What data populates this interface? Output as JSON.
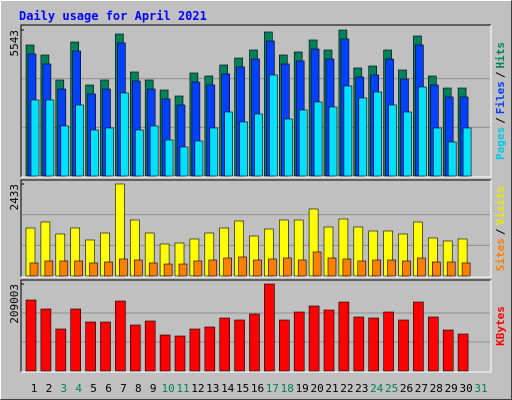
{
  "title": "Daily usage for April 2021",
  "legend_separator": "/",
  "categories": [
    "1",
    "2",
    "3",
    "4",
    "5",
    "6",
    "7",
    "8",
    "9",
    "10",
    "11",
    "12",
    "13",
    "14",
    "15",
    "16",
    "17",
    "18",
    "19",
    "20",
    "21",
    "22",
    "23",
    "24",
    "25",
    "26",
    "27",
    "28",
    "29",
    "30",
    "31"
  ],
  "category_colors": [
    "#000000",
    "#000000",
    "#00805c",
    "#00805c",
    "#000000",
    "#000000",
    "#000000",
    "#000000",
    "#000000",
    "#00805c",
    "#00805c",
    "#000000",
    "#000000",
    "#000000",
    "#000000",
    "#000000",
    "#00805c",
    "#00805c",
    "#000000",
    "#000000",
    "#000000",
    "#000000",
    "#000000",
    "#00805c",
    "#00805c",
    "#000000",
    "#000000",
    "#000000",
    "#000000",
    "#000000",
    "#00805c"
  ],
  "chart_data": [
    {
      "type": "bar",
      "ylim": [
        0,
        5543
      ],
      "yticks": [
        5543
      ],
      "grid": true,
      "series": [
        {
          "name": "Hits",
          "color": "#00805c",
          "label_color": "#00805c",
          "values": [
            4974,
            4594,
            3645,
            5088,
            3455,
            3645,
            5392,
            3949,
            3645,
            3265,
            3038,
            3911,
            3797,
            4215,
            4480,
            4784,
            5468,
            4594,
            4708,
            5164,
            4784,
            5543,
            4101,
            4177,
            4784,
            4025,
            5316,
            3797,
            3341,
            3341,
            null
          ]
        },
        {
          "name": "Files",
          "color": "#0040ff",
          "label_color": "#0040ff",
          "values": [
            4632,
            4253,
            3303,
            4746,
            3114,
            3303,
            5050,
            3607,
            3303,
            2924,
            2696,
            3569,
            3455,
            3873,
            4139,
            4442,
            5126,
            4253,
            4367,
            4822,
            4442,
            5202,
            3759,
            3835,
            4442,
            3683,
            4974,
            3455,
            3000,
            3000,
            null
          ]
        },
        {
          "name": "Pages",
          "color": "#00e0ff",
          "label_color": "#00c8e8",
          "values": [
            2886,
            2886,
            1899,
            2696,
            1747,
            1823,
            3152,
            1747,
            1899,
            1367,
            1101,
            1329,
            1823,
            2430,
            2050,
            2354,
            3835,
            2164,
            2506,
            2810,
            2620,
            3417,
            2962,
            3189,
            2696,
            2430,
            3379,
            1823,
            1291,
            1823,
            null
          ]
        }
      ]
    },
    {
      "type": "bar",
      "ylim": [
        0,
        2433
      ],
      "yticks": [
        2433
      ],
      "grid": true,
      "series": [
        {
          "name": "Visits",
          "color": "#ffff00",
          "label_color": "#e8e800",
          "values": [
            1270,
            1428,
            1111,
            1270,
            952,
            1137,
            2433,
            1481,
            1137,
            846,
            873,
            979,
            1137,
            1270,
            1455,
            1058,
            1243,
            1481,
            1481,
            1772,
            1296,
            1508,
            1296,
            1190,
            1190,
            1111,
            1428,
            1005,
            926,
            979,
            null
          ]
        },
        {
          "name": "Sites",
          "color": "#ff8000",
          "label_color": "#ff8000",
          "values": [
            344,
            397,
            397,
            397,
            344,
            370,
            450,
            423,
            344,
            317,
            317,
            397,
            423,
            476,
            503,
            423,
            450,
            476,
            423,
            635,
            476,
            450,
            397,
            423,
            423,
            397,
            476,
            370,
            370,
            344,
            null
          ]
        }
      ]
    },
    {
      "type": "bar",
      "ylim": [
        0,
        209003
      ],
      "yticks": [
        209003
      ],
      "grid": true,
      "series": [
        {
          "name": "KBytes",
          "color": "#ff0000",
          "label_color": "#ff0000",
          "values": [
            170542,
            148924,
            100884,
            148924,
            117698,
            117698,
            168140,
            110492,
            120100,
            86472,
            84070,
            100884,
            105688,
            127306,
            122502,
            136914,
            209003,
            122502,
            141718,
            156130,
            146522,
            165738,
            129708,
            127306,
            141718,
            122502,
            165738,
            129708,
            98482,
            88874,
            null
          ]
        }
      ]
    }
  ]
}
